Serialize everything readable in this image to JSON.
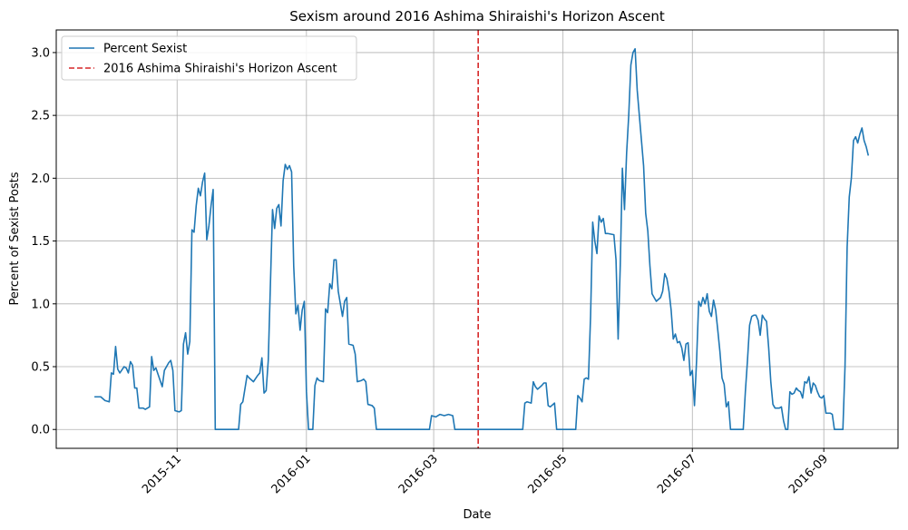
{
  "chart_data": {
    "type": "line",
    "title": "Sexism around 2016 Ashima Shiraishi's Horizon Ascent",
    "xlabel": "Date",
    "ylabel": "Percent of Sexist Posts",
    "x": [
      16701,
      16704,
      16706,
      16708,
      16709,
      16710,
      16711,
      16712,
      16713,
      16715,
      16716,
      16717,
      16718,
      16719,
      16720,
      16721,
      16722,
      16724,
      16725,
      16727,
      16728,
      16729,
      16730,
      16731,
      16733,
      16734,
      16736,
      16737,
      16738,
      16739,
      16741,
      16742,
      16743,
      16744,
      16745,
      16746,
      16747,
      16748,
      16749,
      16750,
      16751,
      16752,
      16753,
      16754,
      16755,
      16756,
      16757,
      16758,
      16769,
      16770,
      16771,
      16773,
      16774,
      16776,
      16778,
      16779,
      16780,
      16781,
      16782,
      16783,
      16784,
      16785,
      16786,
      16787,
      16788,
      16789,
      16790,
      16791,
      16792,
      16793,
      16794,
      16795,
      16796,
      16797,
      16798,
      16799,
      16800,
      16801,
      16802,
      16804,
      16805,
      16806,
      16807,
      16809,
      16810,
      16811,
      16812,
      16813,
      16814,
      16815,
      16816,
      16817,
      16818,
      16819,
      16820,
      16821,
      16823,
      16824,
      16825,
      16827,
      16828,
      16829,
      16830,
      16832,
      16833,
      16834,
      16859,
      16860,
      16862,
      16864,
      16866,
      16868,
      16870,
      16871,
      16903,
      16904,
      16905,
      16907,
      16908,
      16909,
      16910,
      16912,
      16913,
      16914,
      16915,
      16916,
      16918,
      16919,
      16928,
      16929,
      16930,
      16931,
      16932,
      16933,
      16934,
      16935,
      16936,
      16937,
      16938,
      16939,
      16940,
      16941,
      16942,
      16943,
      16946,
      16947,
      16948,
      16949,
      16950,
      16951,
      16952,
      16953,
      16954,
      16955,
      16956,
      16957,
      16958,
      16959,
      16960,
      16961,
      16962,
      16963,
      16964,
      16965,
      16966,
      16968,
      16969,
      16970,
      16971,
      16972,
      16973,
      16974,
      16975,
      16976,
      16977,
      16978,
      16979,
      16980,
      16981,
      16982,
      16983,
      16984,
      16985,
      16986,
      16987,
      16988,
      16989,
      16990,
      16991,
      16992,
      16993,
      16994,
      16995,
      16996,
      16997,
      16998,
      16999,
      17000,
      17001,
      17007,
      17008,
      17009,
      17010,
      17011,
      17012,
      17013,
      17014,
      17015,
      17016,
      17017,
      17018,
      17019,
      17020,
      17021,
      17022,
      17024,
      17025,
      17026,
      17027,
      17028,
      17029,
      17030,
      17031,
      17032,
      17033,
      17034,
      17035,
      17036,
      17037,
      17038,
      17039,
      17040,
      17041,
      17042,
      17043,
      17044,
      17045,
      17046,
      17048,
      17049,
      17050,
      17054,
      17055,
      17056,
      17057,
      17058,
      17059,
      17060,
      17061,
      17062,
      17063,
      17064,
      17065,
      17066
    ],
    "series": [
      {
        "name": "Percent Sexist",
        "color": "#1f77b4",
        "values": [
          0.26,
          0.26,
          0.23,
          0.22,
          0.45,
          0.44,
          0.66,
          0.48,
          0.45,
          0.5,
          0.49,
          0.45,
          0.54,
          0.51,
          0.33,
          0.33,
          0.17,
          0.17,
          0.16,
          0.18,
          0.58,
          0.47,
          0.49,
          0.44,
          0.34,
          0.47,
          0.53,
          0.55,
          0.47,
          0.15,
          0.14,
          0.15,
          0.68,
          0.77,
          0.6,
          0.7,
          1.59,
          1.57,
          1.78,
          1.92,
          1.86,
          1.97,
          2.04,
          1.51,
          1.62,
          1.78,
          1.91,
          0,
          0,
          0.2,
          0.22,
          0.43,
          0.41,
          0.38,
          0.43,
          0.45,
          0.57,
          0.29,
          0.31,
          0.55,
          1.15,
          1.75,
          1.6,
          1.76,
          1.79,
          1.62,
          1.98,
          2.11,
          2.07,
          2.1,
          2.05,
          1.3,
          0.92,
          0.99,
          0.79,
          0.95,
          1.02,
          0.3,
          0,
          0,
          0.35,
          0.41,
          0.39,
          0.38,
          0.96,
          0.93,
          1.16,
          1.12,
          1.35,
          1.35,
          1.1,
          1.0,
          0.9,
          1.02,
          1.05,
          0.68,
          0.67,
          0.6,
          0.38,
          0.39,
          0.4,
          0.38,
          0.2,
          0.19,
          0.17,
          0,
          0,
          0.11,
          0.1,
          0.12,
          0.11,
          0.12,
          0.11,
          0,
          0,
          0.21,
          0.22,
          0.21,
          0.38,
          0.34,
          0.32,
          0.35,
          0.37,
          0.37,
          0.19,
          0.18,
          0.21,
          0,
          0,
          0.27,
          0.25,
          0.22,
          0.4,
          0.41,
          0.4,
          0.9,
          1.65,
          1.5,
          1.4,
          1.7,
          1.65,
          1.68,
          1.56,
          1.56,
          1.55,
          1.35,
          0.72,
          1.3,
          2.08,
          1.75,
          2.2,
          2.5,
          2.9,
          3.0,
          3.03,
          2.7,
          2.5,
          2.3,
          2.1,
          1.72,
          1.58,
          1.3,
          1.08,
          1.05,
          1.02,
          1.05,
          1.1,
          1.24,
          1.2,
          1.1,
          0.95,
          0.72,
          0.76,
          0.69,
          0.7,
          0.65,
          0.55,
          0.68,
          0.69,
          0.43,
          0.47,
          0.19,
          0.55,
          1.02,
          0.98,
          1.05,
          1.0,
          1.08,
          0.94,
          0.9,
          1.03,
          0.95,
          0.79,
          0.62,
          0.41,
          0.36,
          0.18,
          0.22,
          0,
          0,
          0.3,
          0.55,
          0.83,
          0.9,
          0.91,
          0.91,
          0.87,
          0.75,
          0.91,
          0.88,
          0.86,
          0.65,
          0.38,
          0.2,
          0.17,
          0.17,
          0.18,
          0.07,
          0,
          0,
          0.3,
          0.28,
          0.29,
          0.33,
          0.31,
          0.3,
          0.25,
          0.38,
          0.37,
          0.42,
          0.29,
          0.37,
          0.35,
          0.3,
          0.26,
          0.25,
          0.27,
          0.13,
          0.13,
          0.12,
          0,
          0,
          0.5,
          1.45,
          1.85,
          2.0,
          2.3,
          2.33,
          2.28,
          2.35,
          2.4,
          2.3,
          2.25,
          2.18
        ]
      }
    ],
    "vlines": [
      {
        "x": 16882,
        "name": "2016 Ashima Shiraishi's Horizon Ascent",
        "color": "#d62728"
      }
    ],
    "xlim": [
      16683,
      17080
    ],
    "xticks": [
      {
        "value": 16740,
        "label": "2015-11"
      },
      {
        "value": 16801,
        "label": "2016-01"
      },
      {
        "value": 16861,
        "label": "2016-03"
      },
      {
        "value": 16922,
        "label": "2016-05"
      },
      {
        "value": 16983,
        "label": "2016-07"
      },
      {
        "value": 17045,
        "label": "2016-09"
      }
    ],
    "ylim": [
      -0.15,
      3.18
    ],
    "yticks": [
      {
        "value": 0,
        "label": "0.0"
      },
      0.5,
      {
        "value": 1,
        "label": "1.0"
      },
      1.5,
      {
        "value": 2,
        "label": "2.0"
      },
      2.5,
      {
        "value": 3,
        "label": "3.0"
      }
    ],
    "grid": true,
    "legend": "upper left"
  }
}
